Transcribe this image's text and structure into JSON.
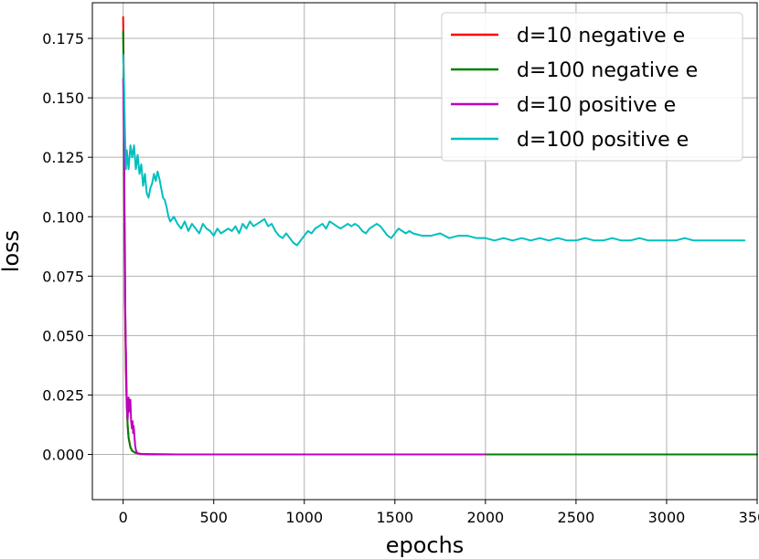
{
  "chart_data": {
    "type": "line",
    "title": "",
    "xlabel": "epochs",
    "ylabel": "loss",
    "xlim": [
      -170,
      3500
    ],
    "ylim": [
      -0.019,
      0.19
    ],
    "xticks": [
      0,
      500,
      1000,
      1500,
      2000,
      2500,
      3000,
      3500
    ],
    "xtick_labels": [
      "0",
      "500",
      "1000",
      "1500",
      "2000",
      "2500",
      "3000",
      "3500"
    ],
    "yticks": [
      0.0,
      0.025,
      0.05,
      0.075,
      0.1,
      0.125,
      0.15,
      0.175
    ],
    "ytick_labels": [
      "0.000",
      "0.025",
      "0.050",
      "0.075",
      "0.100",
      "0.125",
      "0.150",
      "0.175"
    ],
    "grid": true,
    "legend_position": "top-right",
    "series": [
      {
        "name": "d=10 negative e",
        "color": "#ff0000",
        "x": [
          0,
          3,
          6,
          10,
          15,
          20,
          25,
          30,
          40,
          50,
          70,
          100,
          150,
          300,
          600,
          1000,
          1500,
          2000
        ],
        "y": [
          0.184,
          0.16,
          0.11,
          0.065,
          0.035,
          0.02,
          0.012,
          0.007,
          0.003,
          0.0015,
          0.0006,
          0.0002,
          0.0001,
          0.0,
          0.0,
          0.0,
          0.0,
          0.0
        ]
      },
      {
        "name": "d=100 negative e",
        "color": "#008000",
        "x": [
          0,
          3,
          6,
          10,
          15,
          20,
          25,
          30,
          40,
          50,
          70,
          100,
          150,
          300,
          600,
          1000,
          2000,
          2500,
          3000,
          3500
        ],
        "y": [
          0.178,
          0.15,
          0.11,
          0.07,
          0.04,
          0.022,
          0.012,
          0.007,
          0.003,
          0.0015,
          0.0006,
          0.0002,
          0.0001,
          0.0,
          0.0,
          0.0,
          0.0,
          0.0,
          0.0,
          0.0
        ]
      },
      {
        "name": "d=10 positive e",
        "color": "#bf00bf",
        "x": [
          0,
          2,
          5,
          8,
          10,
          12,
          14,
          16,
          18,
          20,
          22,
          25,
          28,
          30,
          33,
          36,
          40,
          44,
          48,
          52,
          55,
          58,
          62,
          66,
          70,
          75,
          80,
          90,
          100,
          150,
          200,
          300,
          500,
          1000,
          1500,
          2000
        ],
        "y": [
          0.158,
          0.15,
          0.13,
          0.1,
          0.085,
          0.06,
          0.048,
          0.042,
          0.03,
          0.022,
          0.018,
          0.015,
          0.02,
          0.024,
          0.022,
          0.018,
          0.023,
          0.014,
          0.011,
          0.014,
          0.009,
          0.012,
          0.008,
          0.004,
          0.002,
          0.001,
          0.0005,
          0.0002,
          0.0001,
          0.0,
          0.0,
          0.0,
          0.0,
          0.0,
          0.0,
          0.0
        ]
      },
      {
        "name": "d=100 positive e",
        "color": "#00bfbf",
        "x": [
          0,
          5,
          10,
          15,
          20,
          30,
          40,
          50,
          60,
          70,
          80,
          90,
          100,
          110,
          120,
          130,
          140,
          150,
          160,
          170,
          180,
          190,
          200,
          210,
          220,
          230,
          240,
          250,
          260,
          280,
          300,
          320,
          340,
          360,
          380,
          400,
          420,
          440,
          460,
          480,
          500,
          520,
          540,
          560,
          580,
          600,
          620,
          640,
          660,
          680,
          700,
          720,
          740,
          760,
          780,
          800,
          820,
          840,
          860,
          880,
          900,
          920,
          940,
          960,
          980,
          1000,
          1020,
          1040,
          1060,
          1080,
          1100,
          1120,
          1140,
          1160,
          1180,
          1200,
          1220,
          1240,
          1260,
          1280,
          1300,
          1320,
          1340,
          1360,
          1380,
          1400,
          1420,
          1440,
          1460,
          1480,
          1500,
          1520,
          1540,
          1560,
          1580,
          1600,
          1650,
          1700,
          1750,
          1800,
          1850,
          1900,
          1950,
          2000,
          2050,
          2100,
          2150,
          2200,
          2250,
          2300,
          2350,
          2400,
          2450,
          2500,
          2550,
          2600,
          2650,
          2700,
          2750,
          2800,
          2850,
          2900,
          2950,
          3000,
          3050,
          3100,
          3150,
          3200,
          3250,
          3300,
          3350,
          3400,
          3430
        ],
        "y": [
          0.168,
          0.155,
          0.135,
          0.12,
          0.128,
          0.12,
          0.13,
          0.125,
          0.13,
          0.12,
          0.126,
          0.118,
          0.122,
          0.113,
          0.118,
          0.11,
          0.108,
          0.112,
          0.114,
          0.118,
          0.115,
          0.119,
          0.116,
          0.112,
          0.108,
          0.107,
          0.104,
          0.1,
          0.098,
          0.1,
          0.097,
          0.095,
          0.098,
          0.094,
          0.097,
          0.095,
          0.093,
          0.097,
          0.095,
          0.094,
          0.092,
          0.095,
          0.093,
          0.094,
          0.095,
          0.094,
          0.096,
          0.093,
          0.097,
          0.095,
          0.098,
          0.096,
          0.097,
          0.098,
          0.099,
          0.096,
          0.097,
          0.094,
          0.092,
          0.091,
          0.093,
          0.091,
          0.089,
          0.088,
          0.09,
          0.092,
          0.094,
          0.093,
          0.095,
          0.096,
          0.097,
          0.095,
          0.098,
          0.097,
          0.096,
          0.095,
          0.096,
          0.097,
          0.096,
          0.097,
          0.096,
          0.094,
          0.093,
          0.095,
          0.096,
          0.097,
          0.096,
          0.094,
          0.092,
          0.091,
          0.093,
          0.095,
          0.094,
          0.093,
          0.094,
          0.093,
          0.092,
          0.092,
          0.093,
          0.091,
          0.092,
          0.092,
          0.091,
          0.091,
          0.09,
          0.091,
          0.09,
          0.091,
          0.09,
          0.091,
          0.09,
          0.091,
          0.09,
          0.09,
          0.091,
          0.09,
          0.09,
          0.091,
          0.09,
          0.09,
          0.091,
          0.09,
          0.09,
          0.09,
          0.09,
          0.091,
          0.09,
          0.09,
          0.09,
          0.09,
          0.09,
          0.09,
          0.09
        ]
      }
    ]
  }
}
